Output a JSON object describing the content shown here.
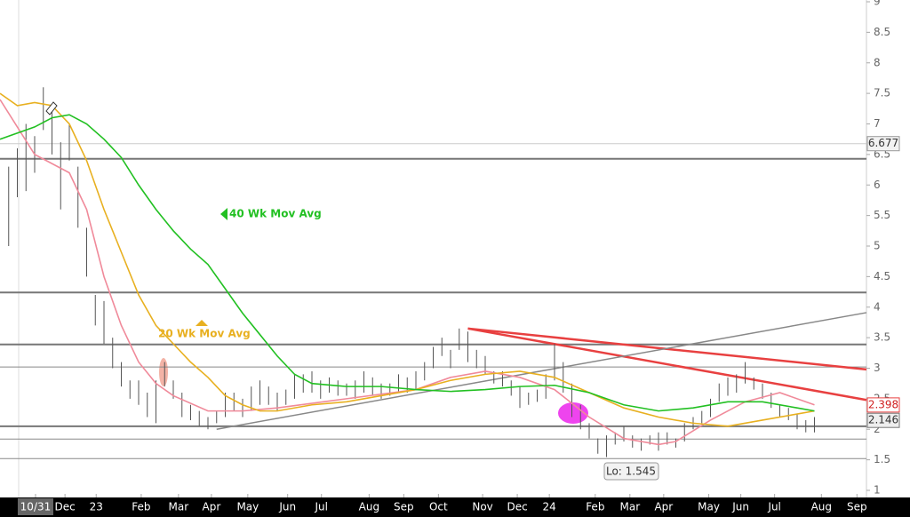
{
  "chart_data": {
    "type": "ohlc",
    "xlim": [
      0,
      100
    ],
    "ylim": [
      1,
      9
    ],
    "yticks": [
      1,
      1.5,
      2,
      2.5,
      3,
      3.5,
      4,
      4.5,
      5,
      5.5,
      6,
      6.5,
      7,
      7.5,
      8,
      8.5,
      9
    ],
    "xticks": [
      {
        "value": 4.1,
        "label": "10/31"
      },
      {
        "value": 7.5,
        "label": "Dec"
      },
      {
        "value": 11.1,
        "label": "23"
      },
      {
        "value": 16.3,
        "label": "Feb"
      },
      {
        "value": 20.6,
        "label": "Mar"
      },
      {
        "value": 24.4,
        "label": "Apr"
      },
      {
        "value": 28.6,
        "label": "May"
      },
      {
        "value": 33.2,
        "label": "Jun"
      },
      {
        "value": 37.1,
        "label": "Jul"
      },
      {
        "value": 42.6,
        "label": "Aug"
      },
      {
        "value": 46.6,
        "label": "Sep"
      },
      {
        "value": 50.6,
        "label": "Oct"
      },
      {
        "value": 55.7,
        "label": "Nov"
      },
      {
        "value": 59.7,
        "label": "Dec"
      },
      {
        "value": 63.4,
        "label": "24"
      },
      {
        "value": 68.7,
        "label": "Feb"
      },
      {
        "value": 72.7,
        "label": "Mar"
      },
      {
        "value": 76.6,
        "label": "Apr"
      },
      {
        "value": 81.8,
        "label": "May"
      },
      {
        "value": 85.5,
        "label": "Jun"
      },
      {
        "value": 89.4,
        "label": "Jul"
      },
      {
        "value": 94.8,
        "label": "Aug"
      },
      {
        "value": 98.9,
        "label": "Sep"
      }
    ],
    "bars": {
      "color": "#555555",
      "x": [
        1,
        2,
        3,
        4,
        5,
        6,
        7,
        8,
        9,
        10,
        11,
        12,
        13,
        14,
        15,
        16,
        17,
        18,
        19,
        20,
        21,
        22,
        23,
        24,
        25,
        26,
        27,
        28,
        29,
        30,
        31,
        32,
        33,
        34,
        35,
        36,
        37,
        38,
        39,
        40,
        41,
        42,
        43,
        44,
        45,
        46,
        47,
        48,
        49,
        50,
        51,
        52,
        53,
        54,
        55,
        56,
        57,
        58,
        59,
        60,
        61,
        62,
        63,
        64,
        65,
        66,
        67,
        68,
        69,
        70,
        71,
        72,
        73,
        74,
        75,
        76,
        77,
        78,
        79,
        80,
        81,
        82,
        83,
        84,
        85,
        86,
        87,
        88,
        89,
        90,
        91,
        92,
        93,
        94
      ],
      "low": [
        5.0,
        5.8,
        5.9,
        6.2,
        6.9,
        6.5,
        5.6,
        6.4,
        5.3,
        4.5,
        3.7,
        3.4,
        3.0,
        2.7,
        2.5,
        2.4,
        2.2,
        2.1,
        2.7,
        2.5,
        2.2,
        2.15,
        2.05,
        2.0,
        2.1,
        2.2,
        2.3,
        2.2,
        2.3,
        2.4,
        2.4,
        2.3,
        2.4,
        2.5,
        2.6,
        2.6,
        2.5,
        2.6,
        2.55,
        2.55,
        2.5,
        2.6,
        2.55,
        2.5,
        2.55,
        2.6,
        2.6,
        2.65,
        2.8,
        3.0,
        3.2,
        3.0,
        3.3,
        3.1,
        3.0,
        2.9,
        2.75,
        2.7,
        2.55,
        2.35,
        2.4,
        2.45,
        2.5,
        2.8,
        2.6,
        2.2,
        2.0,
        1.85,
        1.6,
        1.545,
        1.75,
        1.8,
        1.7,
        1.65,
        1.75,
        1.65,
        1.75,
        1.7,
        1.8,
        2.0,
        2.1,
        2.2,
        2.45,
        2.55,
        2.6,
        2.75,
        2.65,
        2.5,
        2.35,
        2.2,
        2.15,
        2.0,
        1.95,
        1.95
      ],
      "high": [
        6.3,
        6.6,
        7.0,
        6.8,
        7.6,
        7.3,
        6.7,
        7.0,
        6.3,
        5.3,
        4.2,
        4.1,
        3.5,
        3.1,
        2.8,
        2.8,
        2.6,
        2.8,
        3.1,
        2.8,
        2.6,
        2.4,
        2.3,
        2.2,
        2.3,
        2.6,
        2.6,
        2.5,
        2.7,
        2.8,
        2.7,
        2.6,
        2.65,
        2.9,
        2.9,
        2.95,
        2.8,
        2.85,
        2.8,
        2.75,
        2.8,
        2.95,
        2.85,
        2.75,
        2.75,
        2.9,
        2.85,
        2.95,
        3.1,
        3.35,
        3.5,
        3.3,
        3.65,
        3.6,
        3.3,
        3.2,
        2.95,
        2.95,
        2.8,
        2.7,
        2.6,
        2.65,
        2.9,
        3.4,
        3.1,
        2.75,
        2.4,
        2.1,
        1.85,
        1.9,
        1.95,
        2.05,
        1.9,
        1.85,
        1.9,
        1.95,
        1.95,
        1.85,
        2.1,
        2.2,
        2.3,
        2.5,
        2.75,
        2.85,
        2.9,
        3.1,
        2.85,
        2.75,
        2.6,
        2.4,
        2.35,
        2.25,
        2.15,
        2.2
      ]
    },
    "series": [
      {
        "color": "#f08a9a",
        "x": [
          0,
          4,
          8,
          10,
          12,
          14,
          16,
          18,
          20,
          24,
          28,
          32,
          40,
          48,
          52,
          56,
          60,
          64,
          68,
          72,
          76,
          78,
          82,
          86,
          90,
          94
        ],
        "values": [
          7.4,
          6.5,
          6.2,
          5.6,
          4.5,
          3.7,
          3.1,
          2.75,
          2.55,
          2.3,
          2.3,
          2.35,
          2.5,
          2.65,
          2.85,
          2.95,
          2.85,
          2.65,
          2.2,
          1.85,
          1.75,
          1.8,
          2.15,
          2.45,
          2.6,
          2.4
        ]
      },
      {
        "color": "#e8b020",
        "x": [
          0,
          2,
          4,
          6,
          8,
          10,
          12,
          14,
          16,
          18,
          20,
          22,
          24,
          26,
          28,
          30,
          32,
          36,
          40,
          44,
          48,
          52,
          56,
          60,
          64,
          68,
          72,
          76,
          80,
          84,
          88,
          92,
          94
        ],
        "values": [
          7.5,
          7.3,
          7.35,
          7.3,
          7.0,
          6.4,
          5.6,
          4.9,
          4.2,
          3.7,
          3.4,
          3.1,
          2.85,
          2.55,
          2.4,
          2.3,
          2.3,
          2.4,
          2.45,
          2.55,
          2.65,
          2.8,
          2.9,
          2.95,
          2.85,
          2.6,
          2.35,
          2.2,
          2.1,
          2.05,
          2.15,
          2.25,
          2.3
        ]
      },
      {
        "color": "#22c022",
        "x": [
          0,
          4,
          6,
          8,
          10,
          12,
          14,
          16,
          18,
          20,
          22,
          24,
          26,
          28,
          30,
          32,
          34,
          36,
          40,
          44,
          48,
          52,
          56,
          60,
          64,
          68,
          72,
          76,
          80,
          84,
          88,
          92,
          94
        ],
        "values": [
          6.75,
          6.95,
          7.1,
          7.15,
          7.0,
          6.75,
          6.45,
          6.0,
          5.6,
          5.25,
          4.95,
          4.7,
          4.3,
          3.9,
          3.55,
          3.2,
          2.9,
          2.75,
          2.7,
          2.7,
          2.65,
          2.62,
          2.65,
          2.7,
          2.72,
          2.6,
          2.4,
          2.3,
          2.35,
          2.45,
          2.45,
          2.35,
          2.3
        ]
      }
    ],
    "hlines": [
      {
        "value": 6.43,
        "color": "#777777",
        "width": 2
      },
      {
        "value": 4.24,
        "color": "#777777",
        "width": 2
      },
      {
        "value": 3.39,
        "color": "#777777",
        "width": 2
      },
      {
        "value": 3.02,
        "color": "#888888",
        "width": 1
      },
      {
        "value": 2.05,
        "color": "#777777",
        "width": 2
      },
      {
        "value": 1.84,
        "color": "#888888",
        "width": 1
      },
      {
        "value": 1.52,
        "color": "#888888",
        "width": 1
      },
      {
        "value": 6.677,
        "color": "#cccccc",
        "width": 1
      }
    ],
    "trendlines": [
      {
        "color": "#e84040",
        "x": [
          54,
          100
        ],
        "values": [
          3.65,
          2.48
        ]
      },
      {
        "color": "#e84040",
        "x": [
          54,
          100
        ],
        "values": [
          3.65,
          2.98
        ]
      },
      {
        "color": "#888888",
        "x": [
          25,
          100
        ],
        "values": [
          2.0,
          3.91
        ]
      }
    ],
    "price_labels": [
      {
        "value": 6.677,
        "bg": "#f2f2f2",
        "border": "#999999",
        "fg": "#333333"
      },
      {
        "value": 2.398,
        "bg": "#ffffff",
        "border": "#e84040",
        "fg": "#d02020"
      },
      {
        "value": 2.146,
        "bg": "#eeeeee",
        "border": "#777777",
        "fg": "#333333"
      }
    ],
    "annotations": {
      "ma40": "40 Wk Mov Avg",
      "ma20": "20 Wk Mov Avg",
      "low": "Lo: 1.545"
    }
  }
}
